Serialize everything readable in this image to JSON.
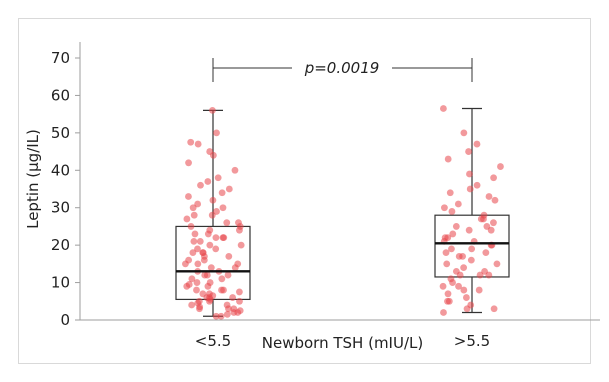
{
  "colors": {
    "point": "#e8454a",
    "box": "#333333",
    "median": "#111111",
    "axis": "#9e9e9e",
    "frame": "#d9d9d9"
  },
  "chart_data": {
    "type": "box",
    "categories": [
      "<5.5",
      ">5.5"
    ],
    "xlabel": "Newborn TSH (mIU/L)",
    "ylabel": "Leptin (µg/IL)",
    "ylim": [
      0,
      70
    ],
    "yticks": [
      0,
      10,
      20,
      30,
      40,
      50,
      60,
      70
    ],
    "grid": false,
    "annotation": "p=0.0019",
    "boxes": [
      {
        "category": "<5.5",
        "min": 1,
        "q1": 5.5,
        "median": 13,
        "q3": 25,
        "max": 56
      },
      {
        "category": ">5.5",
        "min": 2,
        "q1": 11.5,
        "median": 20.5,
        "q3": 28,
        "max": 56.5
      }
    ],
    "points": [
      {
        "category": "<5.5",
        "values": [
          56,
          50,
          47.5,
          47,
          45,
          44,
          42,
          40,
          38,
          37,
          36,
          35,
          34,
          33,
          32,
          31,
          30,
          30,
          29,
          28,
          28,
          27,
          26,
          25,
          25,
          24,
          24,
          23,
          23,
          22,
          22,
          21,
          21,
          20,
          20,
          19,
          19,
          18,
          18,
          17,
          17,
          16,
          16,
          15,
          15,
          14,
          14,
          13,
          13,
          12,
          12,
          11,
          11,
          10,
          10,
          9.5,
          9,
          9,
          8,
          8,
          7.5,
          7,
          7,
          6.5,
          6,
          6,
          5.5,
          5,
          5,
          4.5,
          4,
          4,
          3.5,
          3,
          3,
          2.5,
          2,
          2,
          1.5,
          1,
          1,
          15,
          18,
          12,
          8,
          6,
          22,
          26,
          3,
          5
        ]
      },
      {
        "category": ">5.5",
        "values": [
          56.5,
          50,
          47,
          45,
          43,
          41,
          39,
          38,
          36,
          35,
          34,
          33,
          32,
          31,
          30,
          29,
          28,
          27,
          27,
          26,
          25,
          24,
          23,
          22,
          22,
          21,
          21,
          20,
          20,
          19,
          19,
          18,
          17,
          16,
          15,
          14,
          13,
          12,
          12,
          11,
          10,
          9,
          8,
          7,
          6,
          5,
          4,
          3,
          2,
          25,
          24,
          18,
          17,
          15,
          13,
          12,
          9,
          8,
          5,
          3
        ]
      }
    ]
  }
}
